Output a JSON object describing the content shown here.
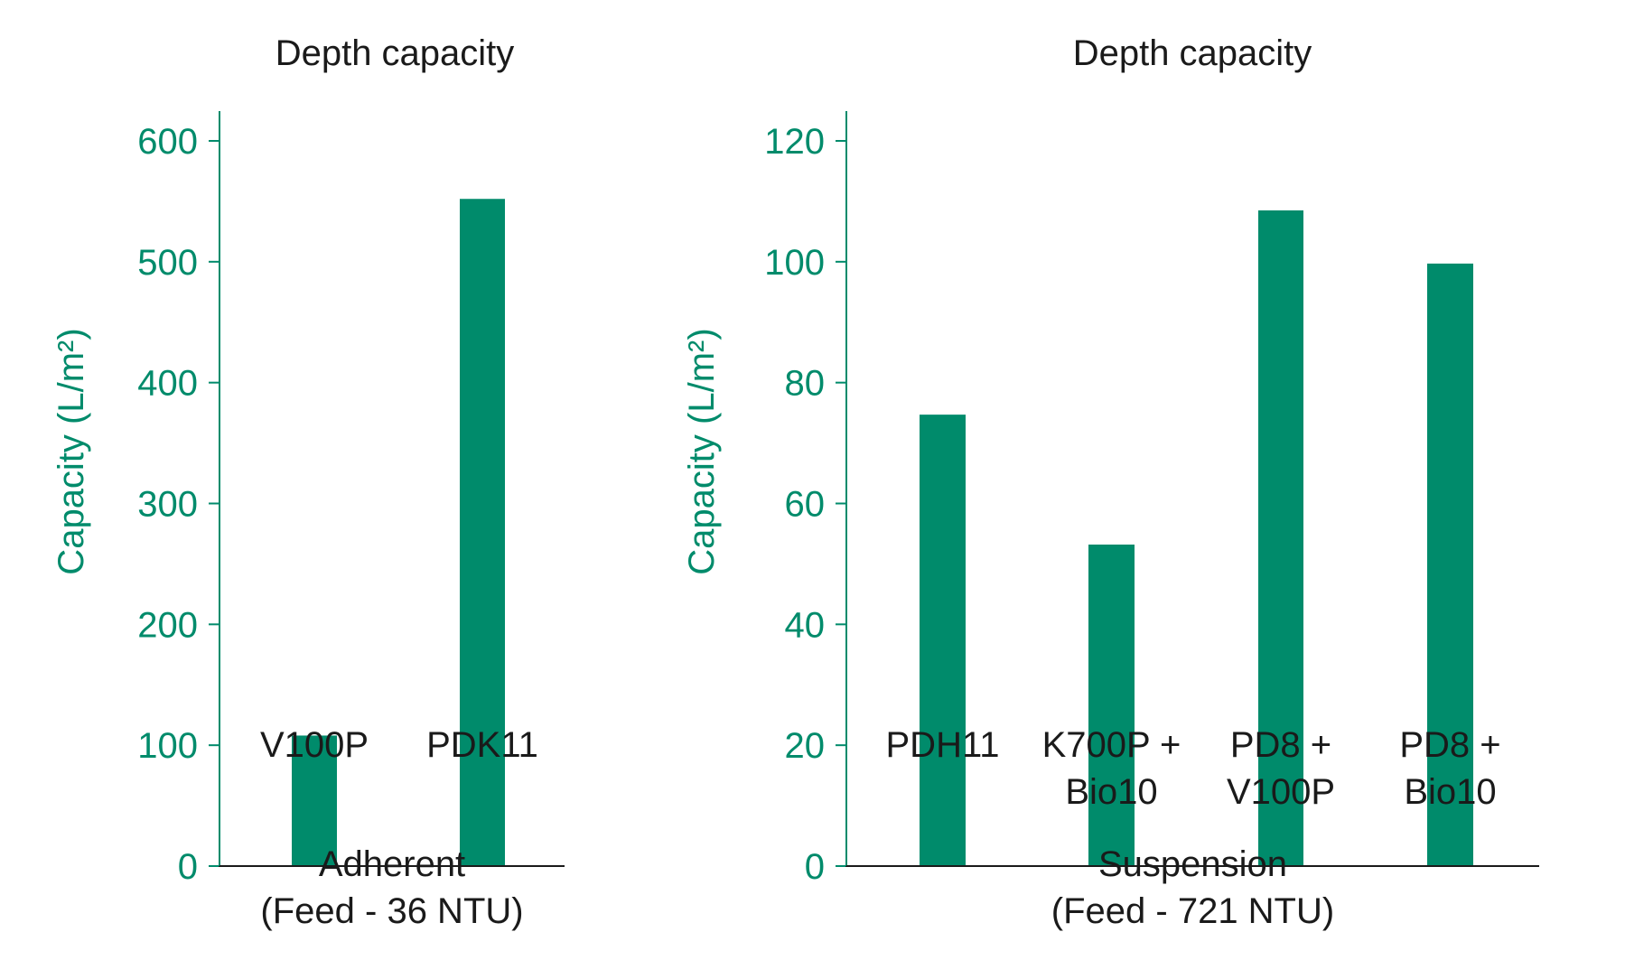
{
  "colors": {
    "bar": "#008b6b",
    "axis": "#008b6b",
    "bracket": "#1a1a1a"
  },
  "chart_data": [
    {
      "type": "bar",
      "title": "Depth capacity",
      "ylabel": "Capacity (L/m²)",
      "ylim": [
        0,
        600
      ],
      "yticks": [
        0,
        100,
        200,
        300,
        400,
        500,
        600
      ],
      "categories": [
        [
          "V100P"
        ],
        [
          "PDK11"
        ]
      ],
      "values": [
        108,
        552
      ],
      "group_label": [
        "Adherent",
        "(Feed - 36 NTU)"
      ],
      "grid": false
    },
    {
      "type": "bar",
      "title": "Depth capacity",
      "ylabel": "Capacity (L/m²)",
      "ylim": [
        0,
        120
      ],
      "yticks": [
        0,
        20,
        40,
        60,
        80,
        100,
        120
      ],
      "categories": [
        [
          "PDH11"
        ],
        [
          "K700P +",
          "Bio10"
        ],
        [
          "PD8 +",
          "V100P"
        ],
        [
          "PD8 +",
          "Bio10"
        ]
      ],
      "values": [
        74.7,
        53.2,
        108.5,
        99.7
      ],
      "group_label": [
        "Suspension",
        "(Feed - 721 NTU)"
      ],
      "grid": false
    }
  ]
}
